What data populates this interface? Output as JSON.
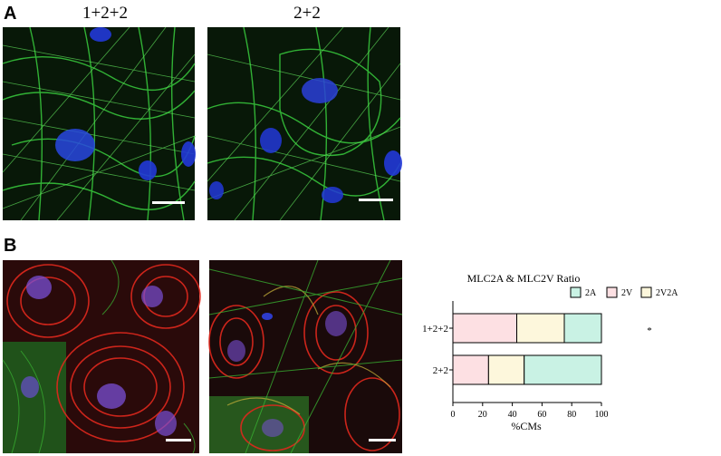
{
  "figure": {
    "panel_a_label": "A",
    "panel_b_label": "B",
    "column_labels": [
      "1+2+2",
      "2+2"
    ]
  },
  "micrographs": [
    {
      "panel": "A",
      "condition": "1+2+2",
      "stain_colors": [
        "#2fb32a",
        "#1a2fd6"
      ]
    },
    {
      "panel": "A",
      "condition": "2+2",
      "stain_colors": [
        "#2fb32a",
        "#1a2fd6"
      ]
    },
    {
      "panel": "B",
      "condition": "1+2+2",
      "stain_colors": [
        "#d4241b",
        "#3aa832",
        "#6b4fd0"
      ]
    },
    {
      "panel": "B",
      "condition": "2+2",
      "stain_colors": [
        "#d4241b",
        "#3aa832",
        "#6b4fd0"
      ]
    }
  ],
  "chart_data": {
    "type": "bar",
    "orientation": "horizontal",
    "stacked": true,
    "title": "MLC2A & MLC2V Ratio",
    "xlabel": "%CMs",
    "ylabel": "",
    "xlim": [
      0,
      100
    ],
    "xticks": [
      0,
      20,
      40,
      60,
      80,
      100
    ],
    "categories": [
      "1+2+2",
      "2+2"
    ],
    "series": [
      {
        "name": "2V",
        "color": "#fde0e3",
        "values": [
          43,
          24
        ]
      },
      {
        "name": "2V2A",
        "color": "#fdf7dc",
        "values": [
          32,
          24
        ]
      },
      {
        "name": "2A",
        "color": "#c9f2e4",
        "values": [
          25,
          52
        ]
      }
    ],
    "legend_order": [
      "2A",
      "2V",
      "2V2A"
    ],
    "legend_position": "top",
    "annotation": "*",
    "grid": false
  }
}
